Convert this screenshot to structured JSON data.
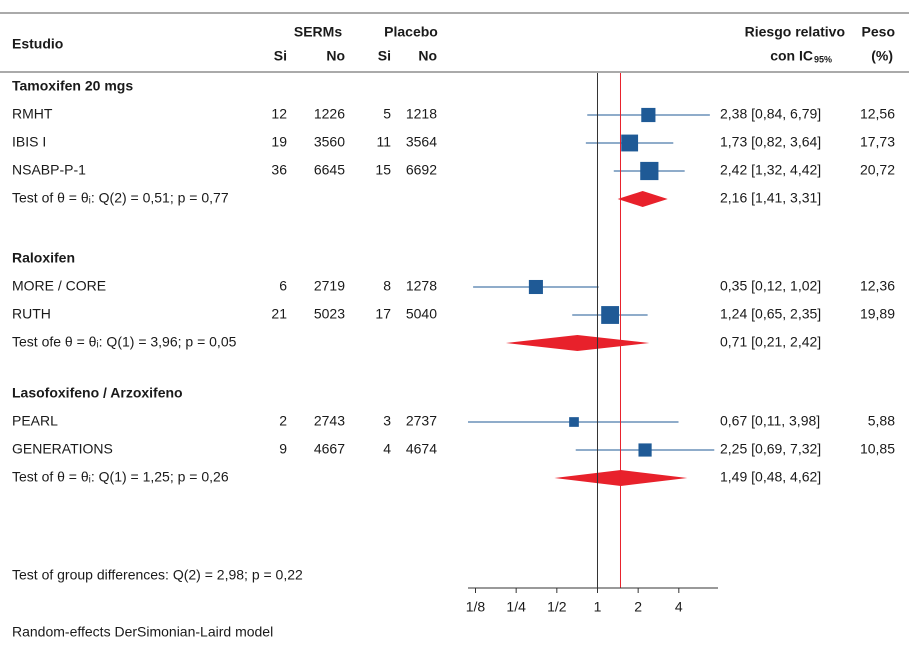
{
  "chart_data": {
    "type": "forest",
    "headers": {
      "study": "Estudio",
      "serms": "SERMs",
      "placebo": "Placebo",
      "si": "Si",
      "no": "No",
      "rr_line1": "Riesgo relativo",
      "rr_line2": "con IC",
      "rr_sub": "95%",
      "weight_line1": "Peso",
      "weight_line2": "(%)"
    },
    "groups": [
      {
        "name": "Tamoxifen 20 mgs",
        "studies": [
          {
            "name": "RMHT",
            "serms_si": 12,
            "serms_no": 1226,
            "placebo_si": 5,
            "placebo_no": 1218,
            "rr": 2.38,
            "ci": [
              0.84,
              6.79
            ],
            "rr_label": "2,38 [0,84, 6,79]",
            "weight": 12.56,
            "weight_label": "12,56"
          },
          {
            "name": "IBIS I",
            "serms_si": 19,
            "serms_no": 3560,
            "placebo_si": 11,
            "placebo_no": 3564,
            "rr": 1.73,
            "ci": [
              0.82,
              3.64
            ],
            "rr_label": "1,73 [0,82, 3,64]",
            "weight": 17.73,
            "weight_label": "17,73"
          },
          {
            "name": "NSABP-P-1",
            "serms_si": 36,
            "serms_no": 6645,
            "placebo_si": 15,
            "placebo_no": 6692,
            "rr": 2.42,
            "ci": [
              1.32,
              4.42
            ],
            "rr_label": "2,42 [1,32, 4,42]",
            "weight": 20.72,
            "weight_label": "20,72"
          }
        ],
        "test": "Test of θ = θᵢ: Q(2) = 0,51; p = 0,77",
        "pooled": {
          "rr": 2.16,
          "ci": [
            1.41,
            3.31
          ],
          "label": "2,16 [1,41, 3,31]"
        }
      },
      {
        "name": "Raloxifen",
        "studies": [
          {
            "name": "MORE / CORE",
            "serms_si": 6,
            "serms_no": 2719,
            "placebo_si": 8,
            "placebo_no": 1278,
            "rr": 0.35,
            "ci": [
              0.12,
              1.02
            ],
            "rr_label": "0,35 [0,12, 1,02]",
            "weight": 12.36,
            "weight_label": "12,36"
          },
          {
            "name": "RUTH",
            "serms_si": 21,
            "serms_no": 5023,
            "placebo_si": 17,
            "placebo_no": 5040,
            "rr": 1.24,
            "ci": [
              0.65,
              2.35
            ],
            "rr_label": "1,24 [0,65, 2,35]",
            "weight": 19.89,
            "weight_label": "19,89"
          }
        ],
        "test": "Test ofe θ = θᵢ: Q(1) = 3,96; p = 0,05",
        "pooled": {
          "rr": 0.71,
          "ci": [
            0.21,
            2.42
          ],
          "label": "0,71 [0,21, 2,42]"
        }
      },
      {
        "name": "Lasofoxifeno / Arzoxifeno",
        "studies": [
          {
            "name": "PEARL",
            "serms_si": 2,
            "serms_no": 2743,
            "placebo_si": 3,
            "placebo_no": 2737,
            "rr": 0.67,
            "ci": [
              0.11,
              3.98
            ],
            "rr_label": "0,67 [0,11, 3,98]",
            "weight": 5.88,
            "weight_label": "5,88"
          },
          {
            "name": "GENERATIONS",
            "serms_si": 9,
            "serms_no": 4667,
            "placebo_si": 4,
            "placebo_no": 4674,
            "rr": 2.25,
            "ci": [
              0.69,
              7.32
            ],
            "rr_label": "2,25 [0,69, 7,32]",
            "weight": 10.85,
            "weight_label": "10,85"
          }
        ],
        "test": "Test of θ = θᵢ: Q(1) = 1,25;  p = 0,26",
        "pooled": {
          "rr": 1.49,
          "ci": [
            0.48,
            4.62
          ],
          "label": "1,49 [0,48, 4,62]"
        }
      }
    ],
    "group_test": "Test of group differences: Q(2) = 2,98; p = 0,22",
    "footer": "Random-effects DerSimonian-Laird model",
    "overall": 1.48,
    "null_value": 1,
    "log_scale": true,
    "xlim": [
      0.11,
      7.8
    ],
    "xticks": [
      {
        "value": 0.125,
        "label": "1/8"
      },
      {
        "value": 0.25,
        "label": "1/4"
      },
      {
        "value": 0.5,
        "label": "1/2"
      },
      1,
      2,
      4
    ],
    "square_color": "#1f5a96",
    "ci_color": "#1f5a96",
    "diamond_color": "#e8212b",
    "overall_color": "#e8212b",
    "null_color": "#333333"
  }
}
